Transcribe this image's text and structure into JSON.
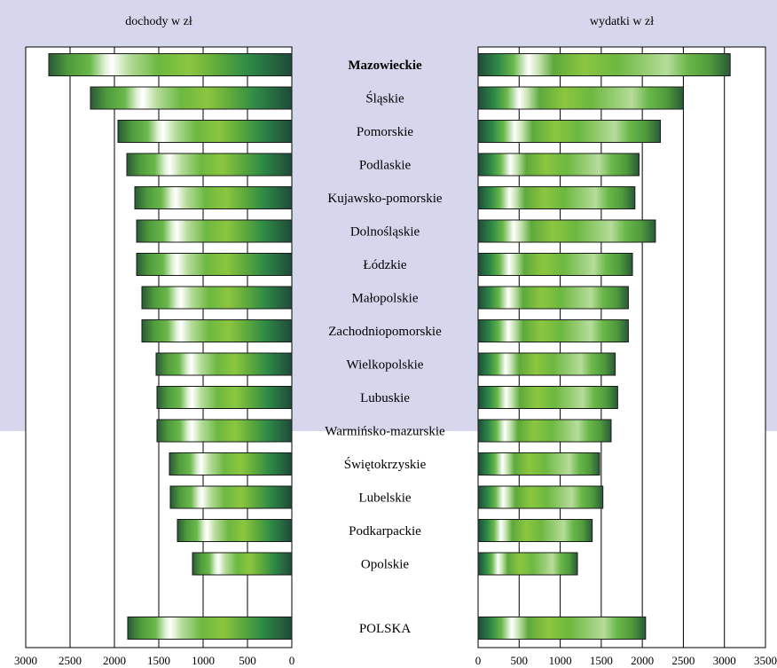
{
  "chart_data": {
    "type": "bar",
    "orientation": "horizontal-butterfly",
    "categories": [
      "Mazowieckie",
      "Śląskie",
      "Pomorskie",
      "Podlaskie",
      "Kujawsko-pomorskie",
      "Dolnośląskie",
      "Łódzkie",
      "Małopolskie",
      "Zachodniopomorskie",
      "Wielkopolskie",
      "Lubuskie",
      "Warmińsko-mazurskie",
      "Świętokrzyskie",
      "Lubelskie",
      "Podkarpackie",
      "Opolskie",
      "POLSKA"
    ],
    "highlight_category": "Mazowieckie",
    "panels": [
      {
        "title": "dochody w zł",
        "xlim": [
          0,
          3000
        ],
        "ticks": [
          3000,
          2500,
          2000,
          1500,
          1000,
          500,
          0
        ],
        "direction": "reversed",
        "values": [
          2740,
          2270,
          1960,
          1860,
          1770,
          1750,
          1750,
          1690,
          1690,
          1530,
          1520,
          1520,
          1380,
          1370,
          1290,
          1120,
          1850
        ]
      },
      {
        "title": "wydatki w zł",
        "xlim": [
          0,
          3500
        ],
        "ticks": [
          0,
          500,
          1000,
          1500,
          2000,
          2500,
          3000,
          3500
        ],
        "direction": "normal",
        "values": [
          3070,
          2500,
          2220,
          1960,
          1910,
          2160,
          1880,
          1830,
          1830,
          1670,
          1700,
          1620,
          1480,
          1520,
          1390,
          1210,
          2040
        ]
      }
    ],
    "grid": true,
    "legend": "none"
  }
}
